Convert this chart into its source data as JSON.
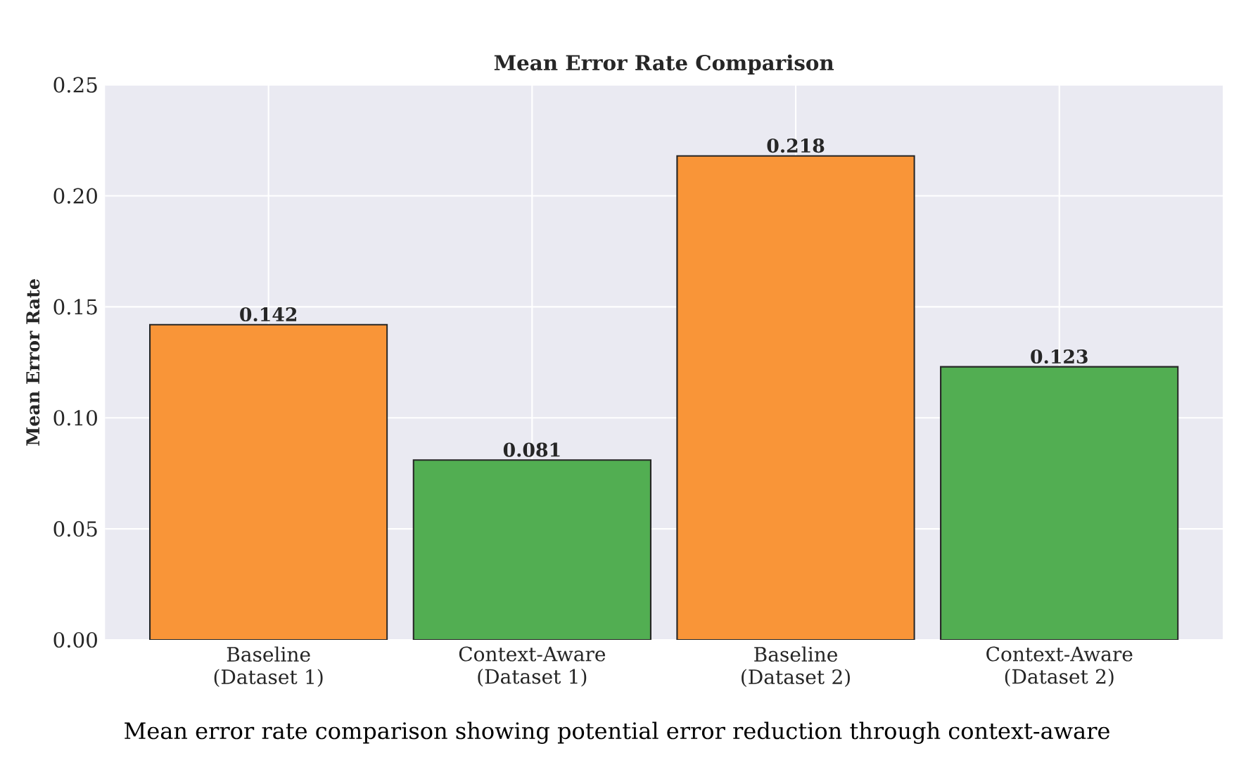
{
  "chart_data": {
    "type": "bar",
    "title": "Mean Error Rate Comparison",
    "ylabel": "Mean Error Rate",
    "categories": [
      "Baseline (Dataset 1)",
      "Context-Aware (Dataset 1)",
      "Baseline (Dataset 2)",
      "Context-Aware (Dataset 2)"
    ],
    "values": [
      0.142,
      0.081,
      0.218,
      0.123
    ],
    "colors": [
      "#f99538",
      "#52ae52",
      "#f99538",
      "#52ae52"
    ],
    "ylim": [
      0,
      0.25
    ],
    "yticks": [
      {
        "value": 0,
        "label": "0.00"
      },
      {
        "value": 0.05,
        "label": "0.05"
      },
      {
        "value": 0.1,
        "label": "0.10"
      },
      {
        "value": 0.15,
        "label": "0.15"
      },
      {
        "value": 0.2,
        "label": "0.20"
      },
      {
        "value": 0.25,
        "label": "0.25"
      }
    ],
    "grid": true,
    "data_labels": true,
    "annotations": [
      "Mean error rate comparison showing potential error reduction through context-aware"
    ]
  }
}
